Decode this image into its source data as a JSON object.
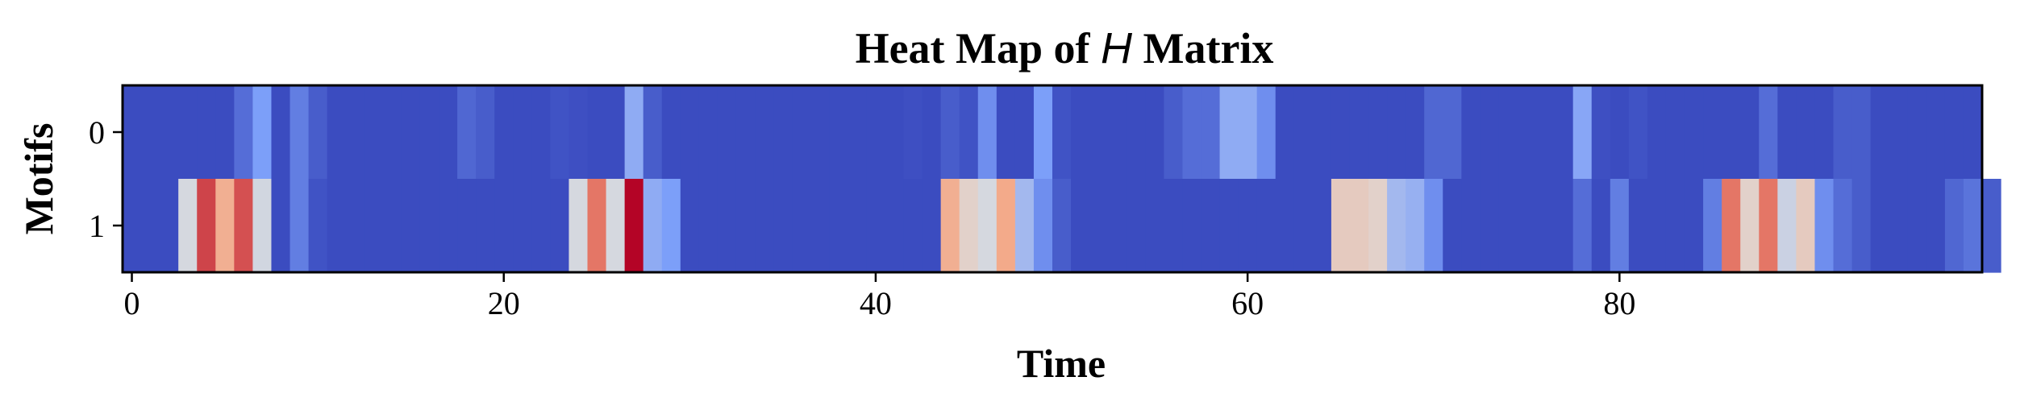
{
  "chart_data": {
    "type": "heatmap",
    "title_prefix": "Heat Map of ",
    "title_math": "H",
    "title_suffix": " Matrix",
    "xlabel": "Time",
    "ylabel": "Motifs",
    "x_ticks": [
      0,
      20,
      40,
      60,
      80
    ],
    "y_ticks": [
      0,
      1
    ],
    "xlim": [
      -0.5,
      99.5
    ],
    "colormap": "coolwarm",
    "rows": [
      "0",
      "1"
    ],
    "values": [
      [
        0.0,
        0.0,
        0.0,
        0.0,
        0.0,
        0.0,
        0.1,
        0.25,
        0.0,
        0.15,
        0.05,
        0.0,
        0.0,
        0.0,
        0.0,
        0.0,
        0.0,
        0.0,
        0.08,
        0.05,
        0.0,
        0.0,
        0.0,
        0.02,
        0.01,
        0.0,
        0.0,
        0.3,
        0.05,
        0.0,
        0.0,
        0.0,
        0.0,
        0.0,
        0.0,
        0.0,
        0.0,
        0.0,
        0.0,
        0.0,
        0.0,
        0.0,
        0.01,
        0.0,
        0.05,
        0.02,
        0.2,
        0.0,
        0.0,
        0.25,
        0.02,
        0.0,
        0.0,
        0.0,
        0.0,
        0.0,
        0.05,
        0.1,
        0.1,
        0.3,
        0.3,
        0.2,
        0.0,
        0.0,
        0.0,
        0.0,
        0.0,
        0.0,
        0.0,
        0.0,
        0.08,
        0.08,
        0.0,
        0.0,
        0.0,
        0.0,
        0.0,
        0.0,
        0.28,
        0.01,
        0.0,
        0.02,
        0.0,
        0.0,
        0.0,
        0.0,
        0.0,
        0.0,
        0.1,
        0.0,
        0.0,
        0.0,
        0.05,
        0.05,
        0.0,
        0.0,
        0.0,
        0.0,
        0.0,
        0.0
      ],
      [
        0.0,
        0.0,
        0.0,
        0.48,
        0.9,
        0.7,
        0.88,
        0.47,
        0.0,
        0.15,
        0.02,
        0.0,
        0.0,
        0.0,
        0.0,
        0.0,
        0.0,
        0.0,
        0.0,
        0.0,
        0.0,
        0.0,
        0.0,
        0.0,
        0.48,
        0.82,
        0.48,
        1.0,
        0.3,
        0.25,
        0.0,
        0.0,
        0.0,
        0.0,
        0.0,
        0.0,
        0.0,
        0.0,
        0.0,
        0.0,
        0.0,
        0.0,
        0.0,
        0.0,
        0.7,
        0.55,
        0.48,
        0.72,
        0.35,
        0.2,
        0.05,
        0.0,
        0.0,
        0.0,
        0.0,
        0.0,
        0.0,
        0.0,
        0.0,
        0.0,
        0.0,
        0.0,
        0.0,
        0.0,
        0.0,
        0.58,
        0.58,
        0.55,
        0.35,
        0.32,
        0.2,
        0.0,
        0.0,
        0.0,
        0.0,
        0.0,
        0.0,
        0.0,
        0.1,
        0.0,
        0.15,
        0.0,
        0.0,
        0.0,
        0.0,
        0.15,
        0.82,
        0.55,
        0.82,
        0.45,
        0.58,
        0.2,
        0.1,
        0.05,
        0.0,
        0.0,
        0.0,
        0.0,
        0.08,
        0.12,
        0.05
      ]
    ]
  }
}
